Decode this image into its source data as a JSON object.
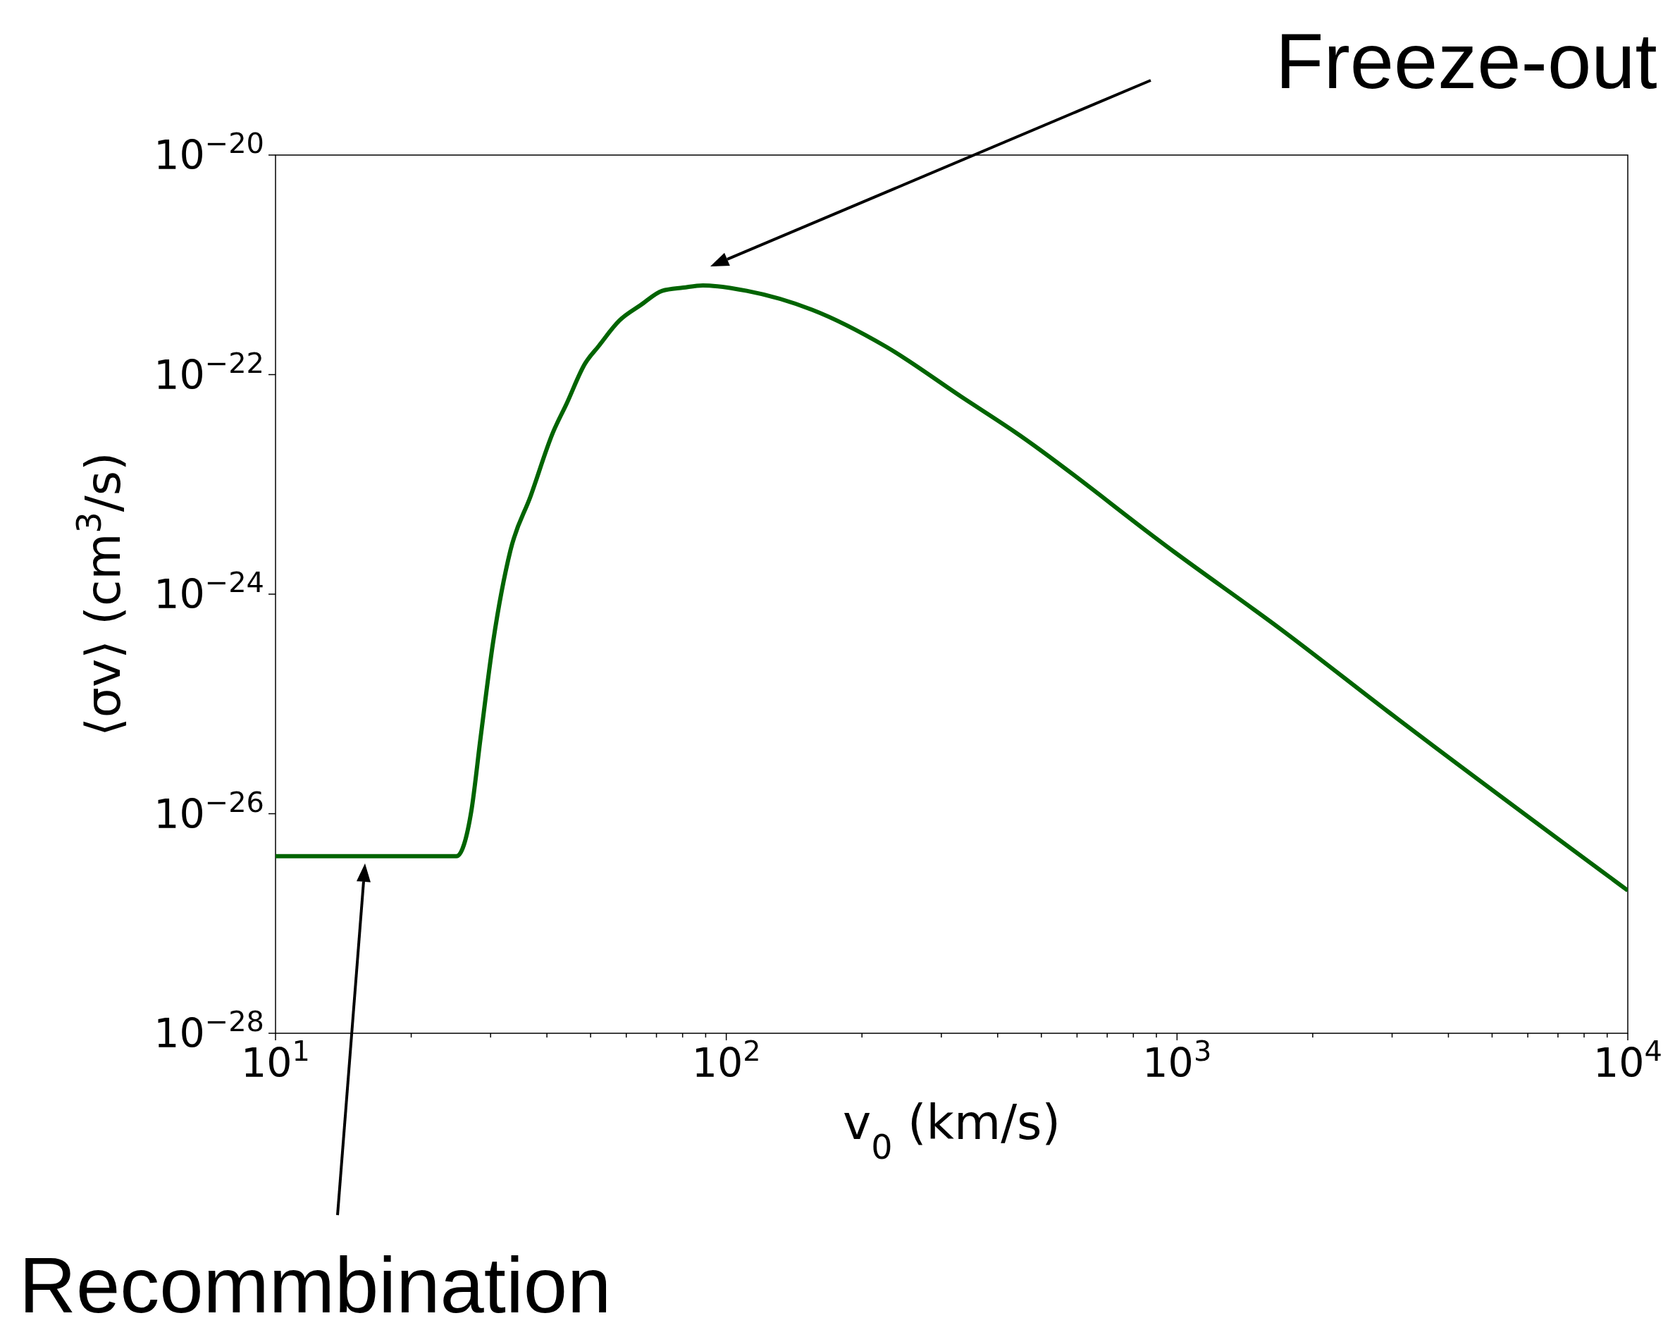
{
  "chart_data": {
    "type": "line",
    "xlabel": "v$_{0}$ (km/s)",
    "ylabel": "⟨σv⟩ (cm$^{3}$/s)",
    "log": "xy",
    "xlim": [
      10,
      10000
    ],
    "ylim": [
      1e-28,
      1e-20
    ],
    "xticks": [
      {
        "value": 10,
        "label": "10$^{1}$"
      },
      {
        "value": 20,
        "label": null
      },
      {
        "value": 30,
        "label": null
      },
      {
        "value": 40,
        "label": null
      },
      {
        "value": 50,
        "label": null
      },
      {
        "value": 60,
        "label": null
      },
      {
        "value": 70,
        "label": null
      },
      {
        "value": 80,
        "label": null
      },
      {
        "value": 90,
        "label": null
      },
      {
        "value": 100,
        "label": "10$^{2}$"
      },
      {
        "value": 200,
        "label": null
      },
      {
        "value": 300,
        "label": null
      },
      {
        "value": 400,
        "label": null
      },
      {
        "value": 500,
        "label": null
      },
      {
        "value": 600,
        "label": null
      },
      {
        "value": 700,
        "label": null
      },
      {
        "value": 800,
        "label": null
      },
      {
        "value": 900,
        "label": null
      },
      {
        "value": 1000,
        "label": "10$^{3}$"
      },
      {
        "value": 2000,
        "label": null
      },
      {
        "value": 3000,
        "label": null
      },
      {
        "value": 4000,
        "label": null
      },
      {
        "value": 5000,
        "label": null
      },
      {
        "value": 6000,
        "label": null
      },
      {
        "value": 7000,
        "label": null
      },
      {
        "value": 8000,
        "label": null
      },
      {
        "value": 9000,
        "label": null
      },
      {
        "value": 10000,
        "label": "10$^{4}$"
      }
    ],
    "yticks": [
      {
        "value": 1e-28,
        "label": "10$^{−28}$"
      },
      {
        "value": 1e-26,
        "label": "10$^{−26}$"
      },
      {
        "value": 1e-24,
        "label": "10$^{−24}$"
      },
      {
        "value": 1e-22,
        "label": "10$^{−22}$"
      },
      {
        "value": 1e-20,
        "label": "10$^{−20}$"
      }
    ],
    "grid": false,
    "line_style": "solid",
    "series": [
      {
        "color": "#006400",
        "x": [
          10,
          25.2,
          27.2,
          28.5,
          30.4,
          33.2,
          36.8,
          41.3,
          44.2,
          48.6,
          52.0,
          57.9,
          64.6,
          72.1,
          80.3,
          88.7,
          111,
          155,
          226,
          332,
          437,
          989,
          1710,
          2940,
          10000
        ],
        "values": [
          4.1e-27,
          4.1e-27,
          1.07e-26,
          4.9e-26,
          3.7e-25,
          2.5e-24,
          7.8e-24,
          3e-23,
          5.4e-23,
          1.26e-22,
          1.8e-22,
          3.1e-22,
          4.3e-22,
          5.8e-22,
          6.2e-22,
          6.5e-22,
          5.8e-22,
          3.9e-22,
          1.8e-22,
          6.3e-23,
          3e-23,
          2.4e-24,
          4.7e-25,
          8.5e-26,
          2e-27
        ]
      }
    ],
    "annotations": [
      "Freeze-out",
      "Recommbination"
    ]
  }
}
